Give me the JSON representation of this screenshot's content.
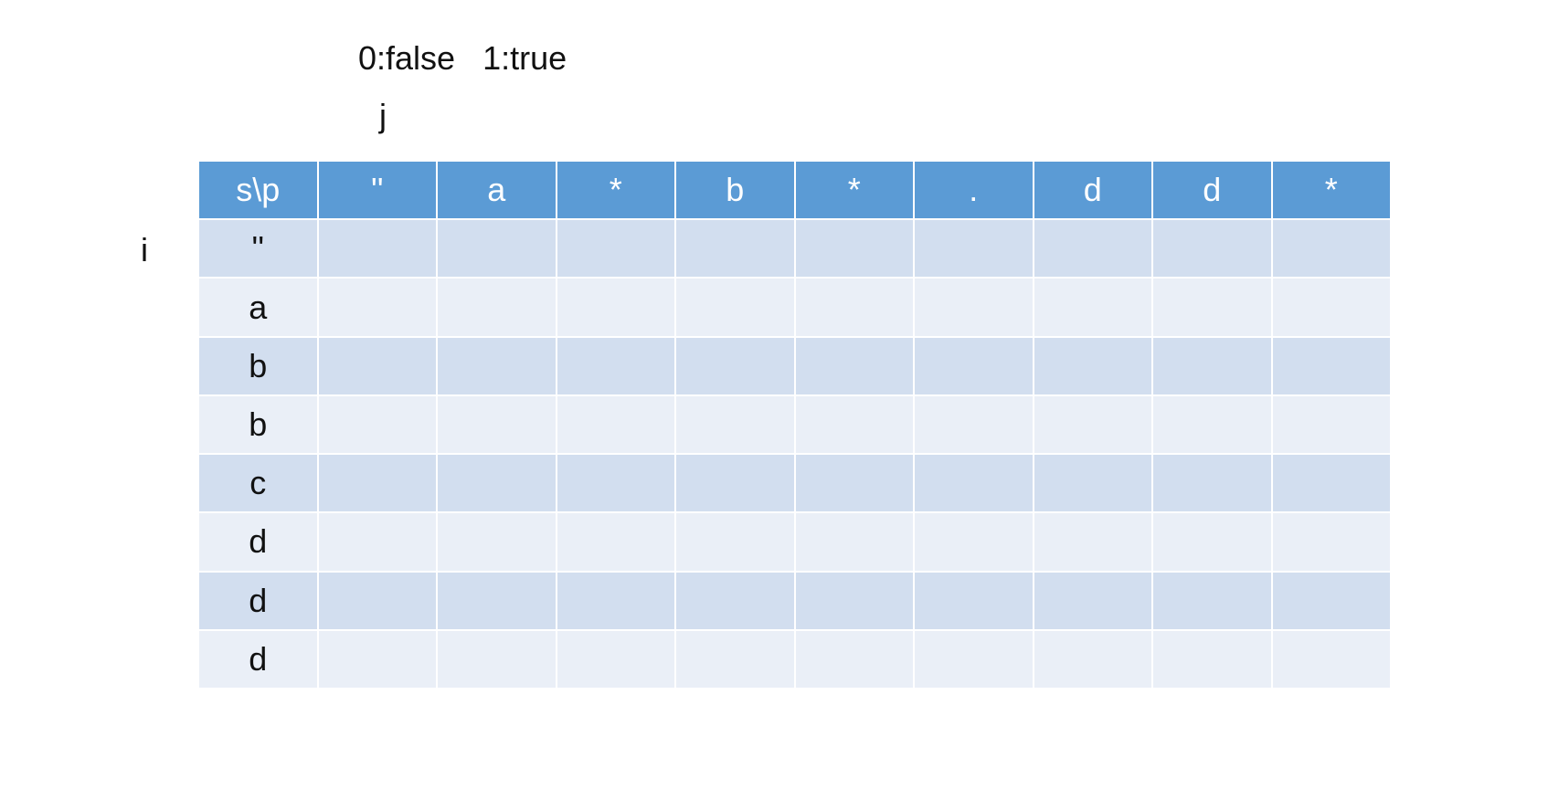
{
  "legend": {
    "false_label": "0:false",
    "true_label": "1:true"
  },
  "axis": {
    "column_index": "j",
    "row_index": "i"
  },
  "table": {
    "corner": "s\\p",
    "pattern": [
      "''",
      "a",
      "*",
      "b",
      "*",
      ".",
      "d",
      "d",
      "*"
    ],
    "string": [
      "''",
      "a",
      "b",
      "b",
      "c",
      "d",
      "d",
      "d"
    ],
    "colors": {
      "header": "#5b9bd5",
      "row_dark": "#d2deef",
      "row_light": "#eaeff7"
    }
  }
}
